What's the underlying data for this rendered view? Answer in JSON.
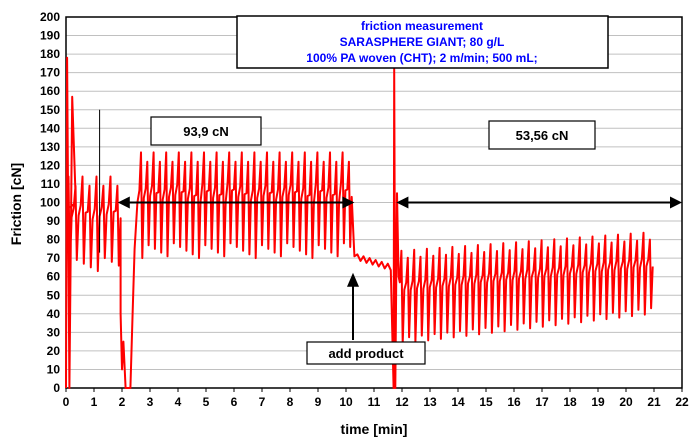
{
  "chart_data": {
    "type": "line",
    "title_lines": [
      "friction measurement",
      "SARASPHERE GIANT; 80 g/L",
      "100%  PA woven (CHT); 2 m/min; 500 mL;"
    ],
    "xlabel": "time [min]",
    "ylabel": "Friction [cN]",
    "xlim": [
      0,
      22
    ],
    "ylim": [
      0,
      200
    ],
    "x_ticks": [
      0,
      1,
      2,
      3,
      4,
      5,
      6,
      7,
      8,
      9,
      10,
      11,
      12,
      13,
      14,
      15,
      16,
      17,
      18,
      19,
      20,
      21,
      22
    ],
    "y_ticks": [
      0,
      10,
      20,
      30,
      40,
      50,
      60,
      70,
      80,
      90,
      100,
      110,
      120,
      130,
      140,
      150,
      160,
      170,
      180,
      190,
      200
    ],
    "grid": "horizontal",
    "series": [
      {
        "color": "#ff0000",
        "segments": [
          {
            "x_start": 0,
            "x_end": 2.0,
            "low": 62,
            "high": 114,
            "cycles": 8
          },
          {
            "x_start": 2.6,
            "x_end": 10.25,
            "low": 70,
            "high": 127,
            "cycles": 34
          },
          {
            "x_start": 11.9,
            "x_end": 21.0,
            "low": 32,
            "high": 80,
            "cycles": 40
          }
        ],
        "features": {
          "start_peak": 178,
          "second_peak": 157,
          "dip_window": [
            1.95,
            2.3
          ],
          "plateau_window": [
            10.3,
            11.6
          ],
          "plateau_values": [
            71,
            65
          ],
          "drop_at": 11.7,
          "drop_peak": 172
        }
      }
    ],
    "annotations": [
      {
        "text": "93,9 cN",
        "value": 93.9
      },
      {
        "text": "53,56 cN",
        "value": 53.56
      },
      {
        "text": "add product",
        "x": 10.25
      }
    ],
    "ranges": [
      {
        "x_from": 1.85,
        "x_to": 10.3,
        "y": 100,
        "label": "93,9 cN"
      },
      {
        "x_from": 11.8,
        "x_to": 22,
        "y": 100,
        "label": "53,56 cN"
      }
    ],
    "colors": {
      "series": "#ff0000",
      "title_text": "#0000ff",
      "grid": "#c0c0c0"
    }
  }
}
